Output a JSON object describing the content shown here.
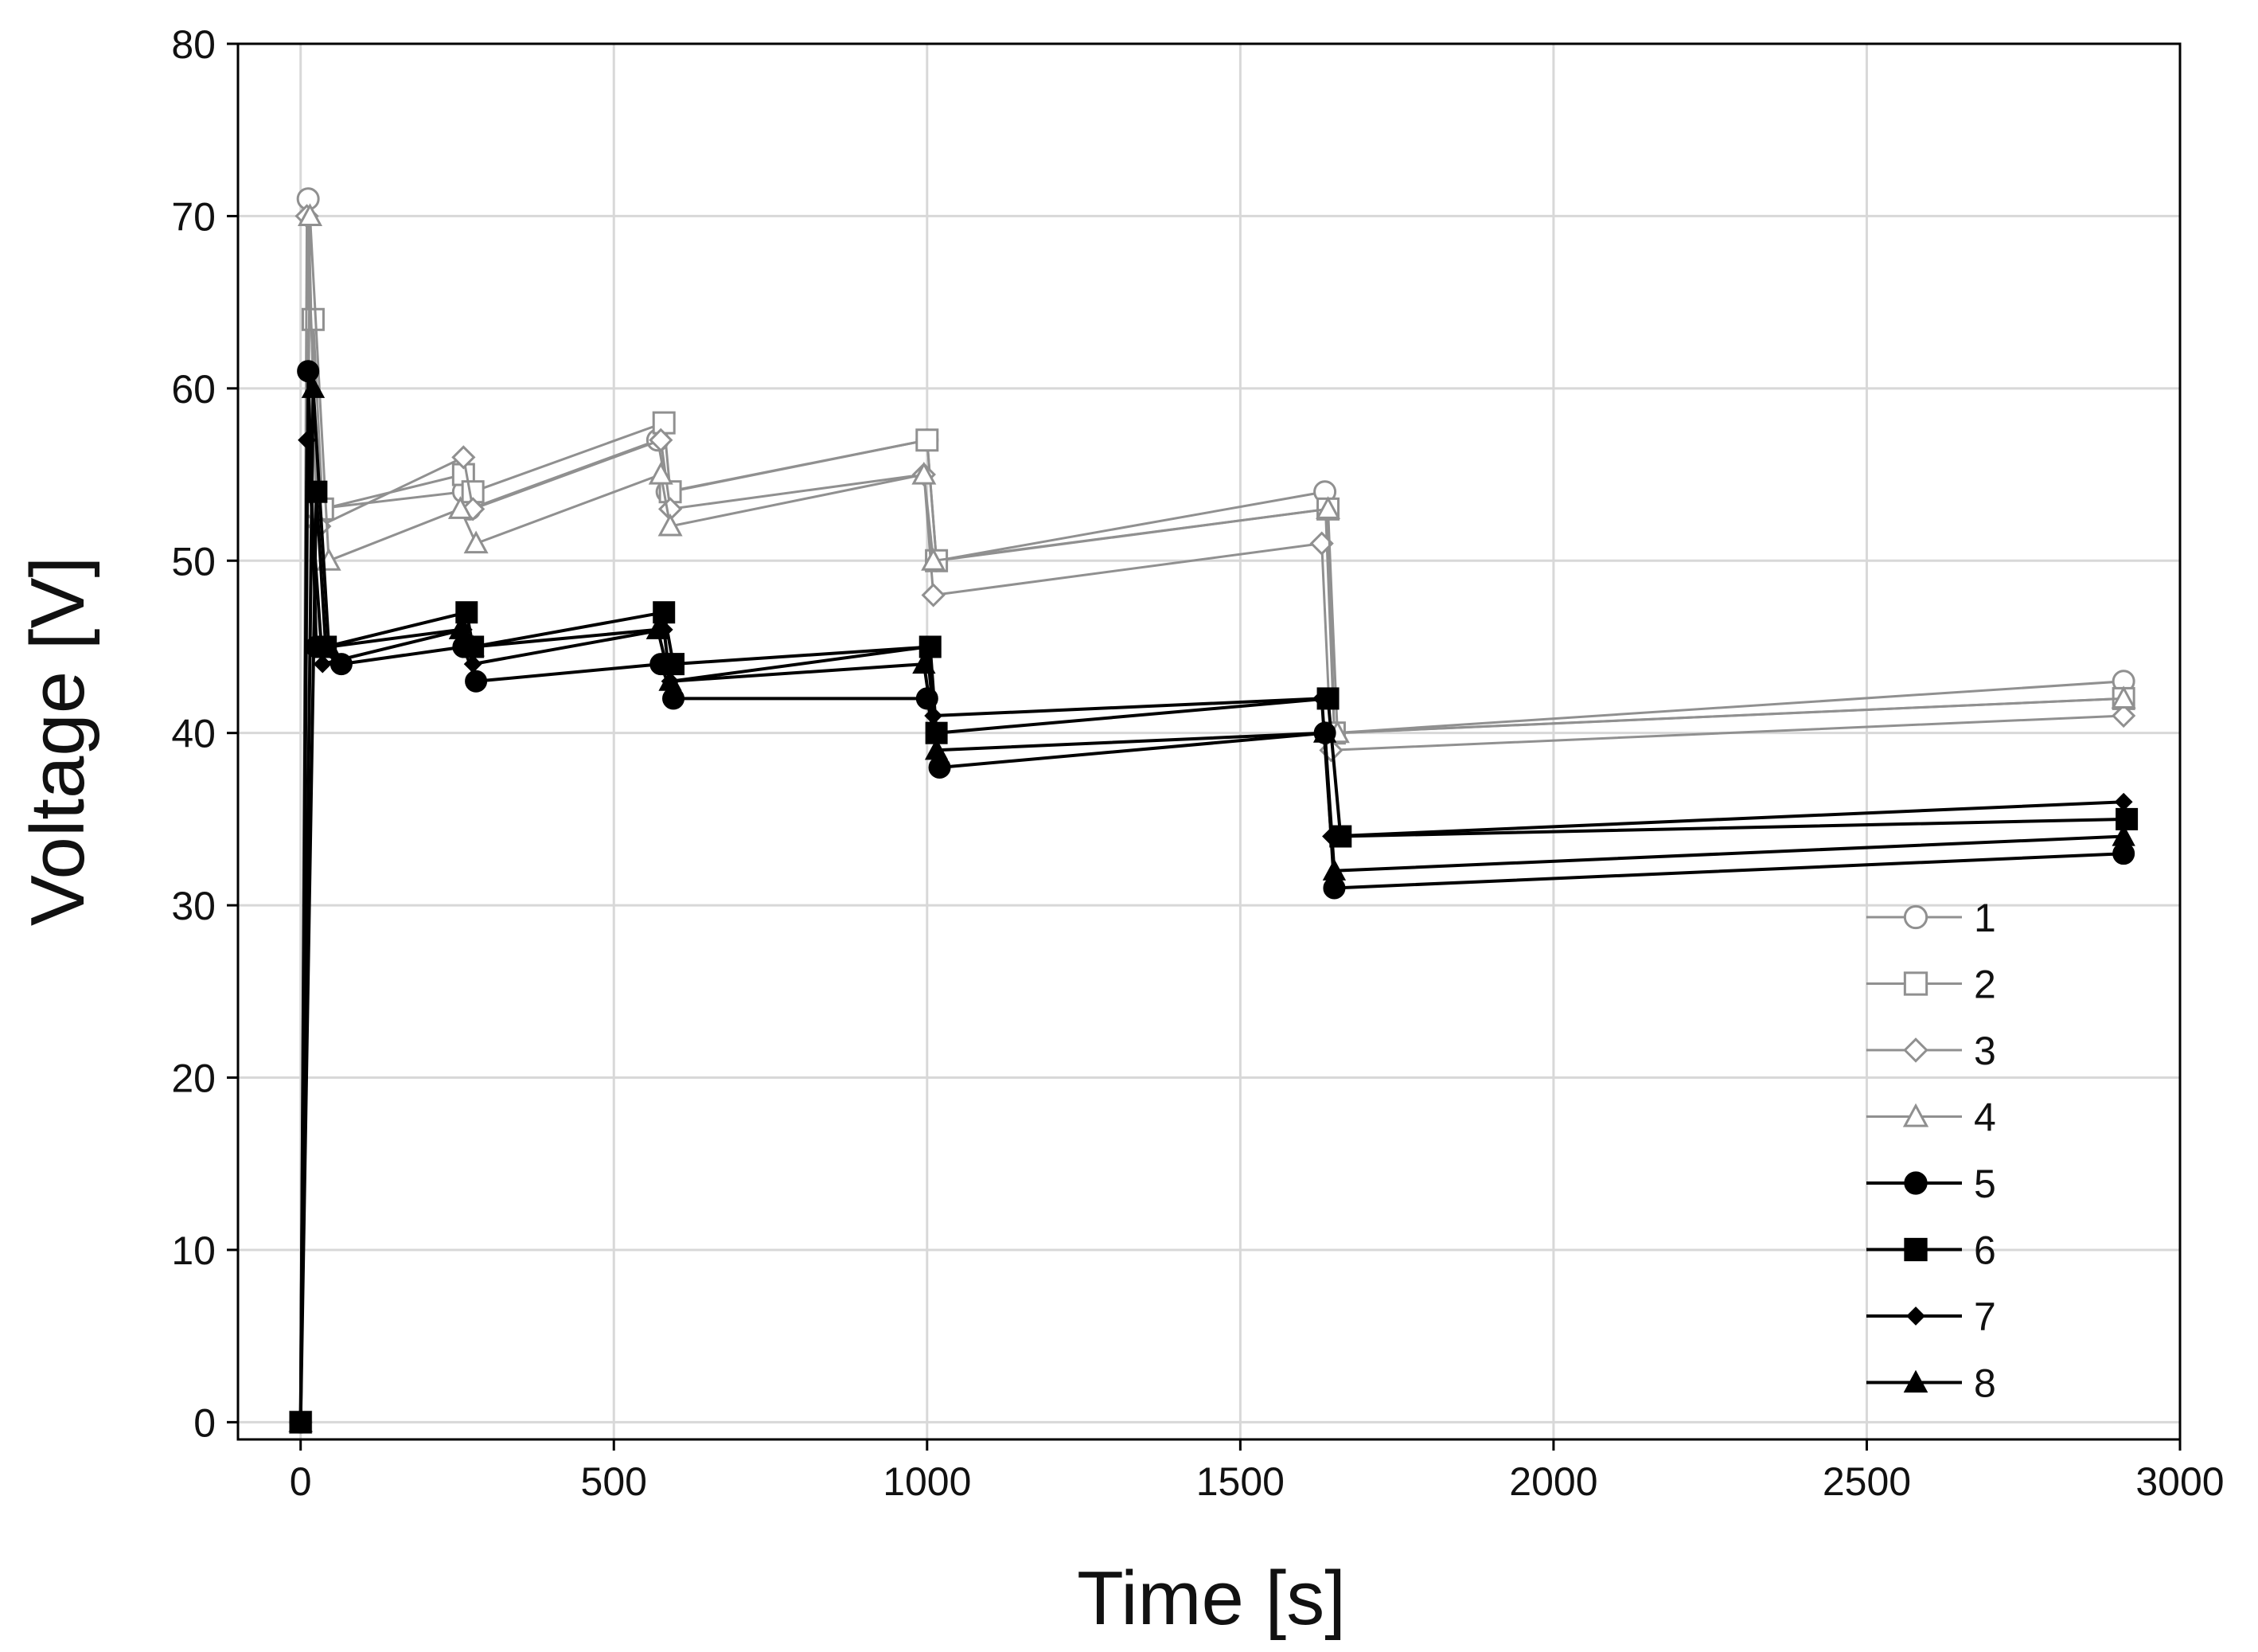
{
  "chart_data": {
    "type": "line",
    "title": "",
    "xlabel": "Time [s]",
    "ylabel": "Voltage [V]",
    "xlim": [
      -100,
      3000
    ],
    "ylim": [
      -1,
      80
    ],
    "xticks": [
      0,
      500,
      1000,
      1500,
      2000,
      2500,
      3000
    ],
    "yticks": [
      0,
      10,
      20,
      30,
      40,
      50,
      60,
      70,
      80
    ],
    "grid": true,
    "legend_position": "bottom-right",
    "series": [
      {
        "name": "1",
        "color": "#909090",
        "marker": "circle-open",
        "points": [
          [
            0,
            0
          ],
          [
            12,
            71
          ],
          [
            25,
            53
          ],
          [
            260,
            54
          ],
          [
            270,
            53
          ],
          [
            570,
            57
          ],
          [
            585,
            54
          ],
          [
            1000,
            57
          ],
          [
            1015,
            50
          ],
          [
            1635,
            54
          ],
          [
            1650,
            40
          ],
          [
            2910,
            43
          ]
        ]
      },
      {
        "name": "2",
        "color": "#909090",
        "marker": "square-open",
        "points": [
          [
            0,
            0
          ],
          [
            20,
            64
          ],
          [
            35,
            53
          ],
          [
            260,
            55
          ],
          [
            275,
            54
          ],
          [
            580,
            58
          ],
          [
            590,
            54
          ],
          [
            1000,
            57
          ],
          [
            1015,
            50
          ],
          [
            1640,
            53
          ],
          [
            1650,
            40
          ],
          [
            2910,
            42
          ]
        ]
      },
      {
        "name": "3",
        "color": "#909090",
        "marker": "diamond-open",
        "points": [
          [
            0,
            0
          ],
          [
            10,
            70
          ],
          [
            30,
            52
          ],
          [
            260,
            56
          ],
          [
            275,
            53
          ],
          [
            575,
            57
          ],
          [
            590,
            53
          ],
          [
            995,
            55
          ],
          [
            1010,
            48
          ],
          [
            1630,
            51
          ],
          [
            1645,
            39
          ],
          [
            2910,
            41
          ]
        ]
      },
      {
        "name": "4",
        "color": "#909090",
        "marker": "triangle-open",
        "points": [
          [
            0,
            0
          ],
          [
            15,
            70
          ],
          [
            45,
            50
          ],
          [
            255,
            53
          ],
          [
            280,
            51
          ],
          [
            575,
            55
          ],
          [
            590,
            52
          ],
          [
            995,
            55
          ],
          [
            1010,
            50
          ],
          [
            1640,
            53
          ],
          [
            1655,
            40
          ],
          [
            2910,
            42
          ]
        ]
      },
      {
        "name": "5",
        "color": "#000000",
        "marker": "circle-filled",
        "points": [
          [
            0,
            0
          ],
          [
            12,
            61
          ],
          [
            25,
            45
          ],
          [
            65,
            44
          ],
          [
            260,
            45
          ],
          [
            280,
            43
          ],
          [
            575,
            44
          ],
          [
            595,
            42
          ],
          [
            1000,
            42
          ],
          [
            1020,
            38
          ],
          [
            1635,
            40
          ],
          [
            1650,
            31
          ],
          [
            2910,
            33
          ]
        ]
      },
      {
        "name": "6",
        "color": "#000000",
        "marker": "square-filled",
        "points": [
          [
            0,
            0
          ],
          [
            25,
            54
          ],
          [
            40,
            45
          ],
          [
            265,
            47
          ],
          [
            275,
            45
          ],
          [
            580,
            47
          ],
          [
            595,
            44
          ],
          [
            1005,
            45
          ],
          [
            1015,
            40
          ],
          [
            1640,
            42
          ],
          [
            1660,
            34
          ],
          [
            2915,
            35
          ]
        ]
      },
      {
        "name": "7",
        "color": "#000000",
        "marker": "diamond-filled",
        "points": [
          [
            0,
            0
          ],
          [
            10,
            57
          ],
          [
            35,
            44
          ],
          [
            260,
            46
          ],
          [
            275,
            44
          ],
          [
            580,
            46
          ],
          [
            590,
            43
          ],
          [
            1000,
            45
          ],
          [
            1010,
            41
          ],
          [
            1630,
            42
          ],
          [
            1645,
            34
          ],
          [
            2910,
            36
          ]
        ]
      },
      {
        "name": "8",
        "color": "#000000",
        "marker": "triangle-filled",
        "points": [
          [
            0,
            0
          ],
          [
            20,
            60
          ],
          [
            45,
            45
          ],
          [
            255,
            46
          ],
          [
            275,
            45
          ],
          [
            570,
            46
          ],
          [
            590,
            43
          ],
          [
            995,
            44
          ],
          [
            1015,
            39
          ],
          [
            1635,
            40
          ],
          [
            1650,
            32
          ],
          [
            2910,
            34
          ]
        ]
      }
    ]
  }
}
